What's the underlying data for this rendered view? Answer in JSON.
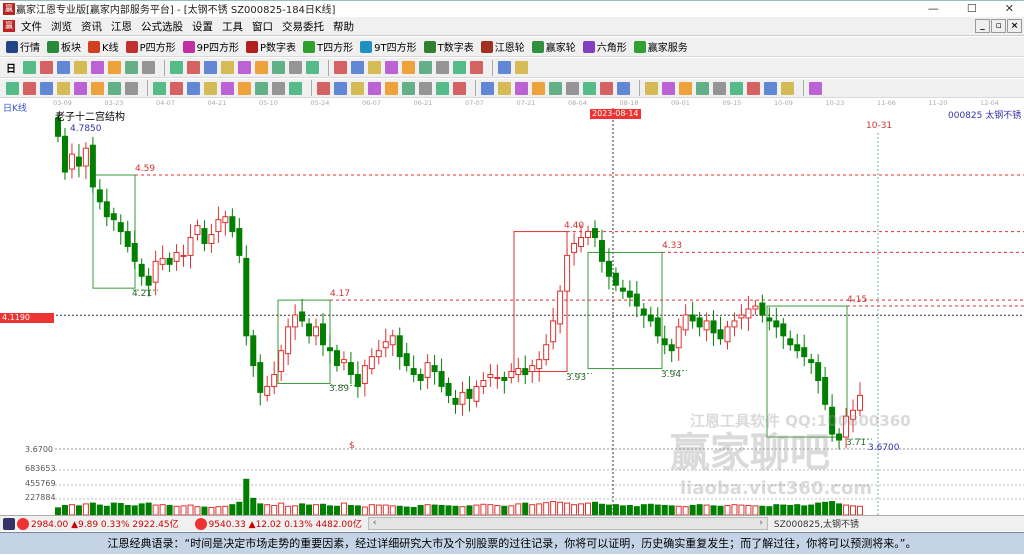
{
  "window": {
    "title": "赢家江恩专业版[赢家内部服务平台] - [太钢不锈  SZ000825-184日K线]",
    "min": "—",
    "max": "☐",
    "close": "✕"
  },
  "menu": [
    "文件",
    "浏览",
    "资讯",
    "江恩",
    "公式选股",
    "设置",
    "工具",
    "窗口",
    "交易委托",
    "帮助"
  ],
  "toolbar1": [
    {
      "label": "行情",
      "icon": "market-grid-icon",
      "color": "#224488"
    },
    {
      "label": "板块",
      "icon": "sector-blocks-icon",
      "color": "#2a8a3a"
    },
    {
      "label": "K线",
      "icon": "kline-icon",
      "color": "#d04020"
    },
    {
      "label": "P四方形",
      "icon": "p-square-icon",
      "color": "#c03030"
    },
    {
      "label": "9P四方形",
      "icon": "9p-square-icon",
      "color": "#c030a0"
    },
    {
      "label": "P数字表",
      "icon": "p-table-icon",
      "color": "#b02020"
    },
    {
      "label": "T四方形",
      "icon": "t-square-icon",
      "color": "#30a030"
    },
    {
      "label": "9T四方形",
      "icon": "9t-square-icon",
      "color": "#2090c0"
    },
    {
      "label": "T数字表",
      "icon": "t-table-icon",
      "color": "#308030"
    },
    {
      "label": "江恩轮",
      "icon": "gann-wheel-icon",
      "color": "#a03020"
    },
    {
      "label": "赢家轮",
      "icon": "winner-wheel-icon",
      "color": "#309040"
    },
    {
      "label": "六角形",
      "icon": "hexagon-icon",
      "color": "#8040c0"
    },
    {
      "label": "赢家服务",
      "icon": "dollar-icon",
      "color": "#30a030"
    }
  ],
  "toolbar2_icons": [
    "period-day-icon",
    "chart-type-icon",
    "info-icon",
    "indicator-icon",
    "indicator2-icon",
    "cursor-select-icon",
    "fx-icon",
    "color-icon",
    "first-icon",
    "last-icon",
    "left-icon",
    "right-icon",
    "zoom-in-icon",
    "zoom-out-icon",
    "move-up-icon",
    "move-down-icon",
    "fit-icon",
    "reset-icon",
    "hand-icon",
    "crosshair-icon",
    "pen-icon",
    "gift-icon",
    "calc-icon",
    "calendar-icon",
    "calculator-icon",
    "notes-icon",
    "save-icon",
    "truck-icon"
  ],
  "toolbar2_period": "日",
  "toolbar3_icons": [
    "line-draw-icon",
    "parallel-icon",
    "gold-ratio-icon",
    "gold-ratio2-icon",
    "fib-icon",
    "wave-icon",
    "pencil-icon",
    "circle-icon",
    "grid-lines-icon",
    "n2-icon",
    "angle-icon",
    "target-icon",
    "gear-icon",
    "box-icon",
    "lines-icon",
    "time-icon",
    "red-time-icon",
    "table-icon",
    "cycle-icon",
    "frame-icon",
    "fan-icon",
    "cube-icon",
    "cube2-icon",
    "angle2-icon",
    "v-icon",
    "grid-icon",
    "grid2-icon",
    "lines2-icon",
    "trend-icon",
    "percent-red-icon",
    "percent-icon",
    "pct-line-icon",
    "coin-icon",
    "gold-icon",
    "speed-icon",
    "fan2-icon",
    "gold2-icon",
    "cross-icon",
    "f-icon",
    "angle3-icon",
    "angle4-icon",
    "angle5-icon",
    "angle6-icon",
    "yinyang-icon",
    "infinity-icon"
  ],
  "axis": {
    "dates": [
      "03-09",
      "03-23",
      "04-07",
      "04-21",
      "05-10",
      "05-24",
      "06-07",
      "06-21",
      "07-07",
      "07-21",
      "08-04",
      "08-18",
      "09-01",
      "09-15",
      "10-09",
      "10-23",
      "11-06",
      "11-20",
      "12-04"
    ],
    "cursor_date": "2023-08-14",
    "period_label": "日K线"
  },
  "chart": {
    "indicator_name": "老子十二宫结构",
    "stock": "000825 太钢不锈",
    "high_label": "4.7850",
    "low_label": "3.6700",
    "low_axis": "3.6700",
    "cursor_price": "4.1190",
    "time_marker": "10-31",
    "levels": [
      {
        "text": "4.59",
        "price": 4.59
      },
      {
        "text": "4.17",
        "price": 4.17
      },
      {
        "text": "4.33",
        "price": 4.33
      },
      {
        "text": "4.15",
        "price": 4.15
      },
      {
        "text": "4.40",
        "price": 4.4
      }
    ],
    "lows": [
      {
        "text": "4.21",
        "price": 4.21
      },
      {
        "text": "3.89",
        "price": 3.89
      },
      {
        "text": "3.93",
        "price": 3.93
      },
      {
        "text": "3.94",
        "price": 3.94
      },
      {
        "text": "3.71",
        "price": 3.71
      }
    ],
    "volume_axis": [
      "683653",
      "455769",
      "227884"
    ],
    "dollar_marker": "$",
    "closes": [
      4.72,
      4.6,
      4.66,
      4.62,
      4.68,
      4.55,
      4.5,
      4.45,
      4.44,
      4.4,
      4.35,
      4.3,
      4.25,
      4.22,
      4.3,
      4.31,
      4.29,
      4.33,
      4.32,
      4.38,
      4.42,
      4.36,
      4.39,
      4.44,
      4.45,
      4.4,
      4.32,
      4.05,
      3.95,
      3.86,
      3.88,
      3.92,
      4.0,
      4.08,
      4.12,
      4.1,
      4.05,
      4.08,
      4.02,
      4.0,
      3.95,
      3.97,
      3.92,
      3.88,
      3.95,
      3.98,
      4.0,
      4.03,
      4.05,
      3.98,
      3.95,
      3.92,
      3.9,
      3.96,
      3.93,
      3.88,
      3.85,
      3.82,
      3.86,
      3.84,
      3.88,
      3.9,
      3.92,
      3.91,
      3.9,
      3.93,
      3.94,
      3.92,
      3.95,
      3.97,
      4.02,
      4.1,
      4.2,
      4.32,
      4.36,
      4.38,
      4.4,
      4.38,
      4.3,
      4.25,
      4.22,
      4.2,
      4.18,
      4.15,
      4.12,
      4.1,
      4.05,
      4.02,
      4.0,
      4.08,
      4.12,
      4.1,
      4.08,
      4.1,
      4.06,
      4.04,
      4.08,
      4.1,
      4.12,
      4.14,
      4.15,
      4.12,
      4.1,
      4.08,
      4.05,
      4.02,
      4.0,
      3.98,
      3.96,
      3.9,
      3.82,
      3.72,
      3.7,
      3.78,
      3.8,
      3.85
    ],
    "volumes": [
      180,
      240,
      260,
      230,
      280,
      300,
      250,
      220,
      300,
      290,
      240,
      230,
      280,
      300,
      250,
      260,
      240,
      220,
      230,
      250,
      210,
      200,
      190,
      210,
      220,
      260,
      320,
      900,
      420,
      280,
      260,
      240,
      300,
      220,
      230,
      280,
      250,
      260,
      270,
      230,
      220,
      300,
      240,
      230,
      200,
      260,
      250,
      250,
      230,
      220,
      200,
      190,
      240,
      260,
      250,
      240,
      230,
      220,
      210,
      230,
      250,
      270,
      260,
      240,
      220,
      230,
      280,
      300,
      260,
      280,
      310,
      340,
      320,
      300,
      260,
      280,
      300,
      320,
      270,
      250,
      260,
      230,
      240,
      210,
      260,
      270,
      250,
      240,
      230,
      220,
      210,
      240,
      260,
      250,
      230,
      220,
      240,
      260,
      250,
      240,
      230,
      220,
      210,
      260,
      250,
      240,
      260,
      230,
      250,
      300,
      320,
      340,
      280,
      250,
      230,
      220
    ]
  },
  "status": {
    "sh_index": "2984.00 ▲9.89 0.33% 2922.45亿",
    "sz_index": "9540.33 ▲12.02 0.13% 4482.00亿",
    "stock": "SZ000825,太钢不锈"
  },
  "watermark": {
    "line1": "江恩工具软件 QQ:100800360",
    "line2": "赢家聊吧",
    "line3": "liaoba.vict360.com"
  },
  "quote": "江恩经典语录：“时间是决定市场走势的重要因素，经过详细研究大市及个别股票的过往记录，你将可以证明，历史确实重复发生；而了解过往，你将可以预测将来。”。",
  "colors": {
    "up": "#e03030",
    "down": "#007f00",
    "level": "#e03030",
    "box": "#3a9a3a",
    "cursor": "#e03030"
  }
}
